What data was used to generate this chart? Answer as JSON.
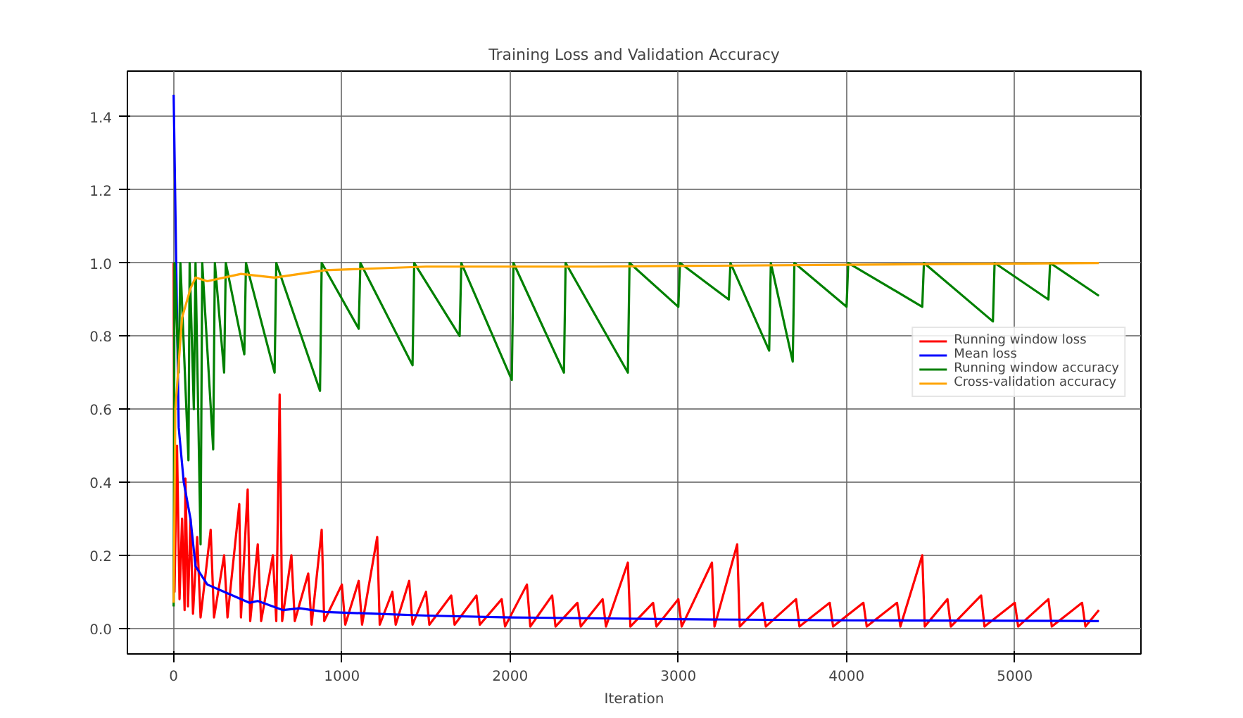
{
  "chart_data": {
    "type": "line",
    "title": "Training Loss and Validation Accuracy",
    "xlabel": "Iteration",
    "xlim": [
      -275,
      5750
    ],
    "ylim": [
      -0.07,
      1.525
    ],
    "xticks": [
      0,
      1000,
      2000,
      3000,
      4000,
      5000
    ],
    "yticks": [
      {
        "value": 0,
        "label": "0.0"
      },
      {
        "value": 0.2,
        "label": "0.2"
      },
      {
        "value": 0.4,
        "label": "0.4"
      },
      {
        "value": 0.6,
        "label": "0.6"
      },
      {
        "value": 0.8,
        "label": "0.8"
      },
      {
        "value": 1.0,
        "label": "1.0"
      },
      {
        "value": 1.2,
        "label": "1.2"
      },
      {
        "value": 1.4,
        "label": "1.4"
      }
    ],
    "grid": true,
    "legend": "right",
    "line_style": "solid",
    "marker": "none",
    "series": [
      {
        "name": "Running window loss",
        "color": "#ff0000",
        "x": [
          0,
          5,
          20,
          35,
          50,
          65,
          70,
          85,
          100,
          115,
          140,
          160,
          220,
          240,
          300,
          320,
          390,
          400,
          440,
          455,
          500,
          520,
          590,
          610,
          630,
          645,
          700,
          720,
          800,
          820,
          880,
          895,
          1000,
          1020,
          1100,
          1120,
          1210,
          1225,
          1300,
          1320,
          1400,
          1420,
          1500,
          1520,
          1650,
          1670,
          1800,
          1820,
          1950,
          1970,
          2100,
          2120,
          2250,
          2270,
          2400,
          2420,
          2550,
          2570,
          2700,
          2715,
          2850,
          2870,
          3000,
          3020,
          3200,
          3215,
          3350,
          3365,
          3500,
          3520,
          3700,
          3720,
          3900,
          3920,
          4100,
          4120,
          4300,
          4320,
          4450,
          4465,
          4600,
          4620,
          4800,
          4820,
          5000,
          5020,
          5200,
          5220,
          5400,
          5420,
          5500
        ],
        "values": [
          1.0,
          0.1,
          0.5,
          0.08,
          0.3,
          0.05,
          0.41,
          0.06,
          0.3,
          0.04,
          0.25,
          0.03,
          0.27,
          0.03,
          0.2,
          0.03,
          0.34,
          0.03,
          0.38,
          0.02,
          0.23,
          0.02,
          0.2,
          0.02,
          0.64,
          0.02,
          0.2,
          0.02,
          0.15,
          0.01,
          0.27,
          0.02,
          0.12,
          0.01,
          0.13,
          0.01,
          0.25,
          0.01,
          0.1,
          0.01,
          0.13,
          0.01,
          0.1,
          0.01,
          0.09,
          0.01,
          0.09,
          0.01,
          0.08,
          0.005,
          0.12,
          0.005,
          0.09,
          0.005,
          0.07,
          0.005,
          0.08,
          0.005,
          0.18,
          0.005,
          0.07,
          0.005,
          0.08,
          0.005,
          0.18,
          0.005,
          0.23,
          0.005,
          0.07,
          0.005,
          0.08,
          0.005,
          0.07,
          0.005,
          0.07,
          0.005,
          0.07,
          0.005,
          0.2,
          0.005,
          0.08,
          0.005,
          0.09,
          0.005,
          0.07,
          0.005,
          0.08,
          0.005,
          0.07,
          0.005,
          0.05
        ]
      },
      {
        "name": "Mean loss",
        "color": "#0000ff",
        "x": [
          0,
          30,
          60,
          100,
          130,
          200,
          300,
          450,
          500,
          650,
          750,
          900,
          1200,
          1500,
          2000,
          3000,
          4000,
          5500
        ],
        "values": [
          1.46,
          0.55,
          0.4,
          0.3,
          0.17,
          0.12,
          0.1,
          0.07,
          0.075,
          0.05,
          0.055,
          0.045,
          0.04,
          0.035,
          0.03,
          0.025,
          0.022,
          0.02
        ]
      },
      {
        "name": "Running window accuracy",
        "color": "#008000",
        "x": [
          0,
          5,
          30,
          40,
          88,
          95,
          120,
          130,
          160,
          170,
          235,
          245,
          300,
          310,
          420,
          430,
          600,
          610,
          870,
          880,
          1100,
          1110,
          1420,
          1430,
          1700,
          1710,
          2010,
          2020,
          2320,
          2330,
          2700,
          2710,
          3000,
          3010,
          3300,
          3310,
          3540,
          3550,
          3680,
          3690,
          4000,
          4010,
          4450,
          4460,
          4870,
          4880,
          5200,
          5210,
          5500
        ],
        "values": [
          0.06,
          1.0,
          0.7,
          1.0,
          0.46,
          1.0,
          0.6,
          1.0,
          0.23,
          1.0,
          0.49,
          1.0,
          0.7,
          1.0,
          0.75,
          1.0,
          0.7,
          1.0,
          0.65,
          1.0,
          0.82,
          1.0,
          0.72,
          1.0,
          0.8,
          1.0,
          0.68,
          1.0,
          0.7,
          1.0,
          0.7,
          1.0,
          0.88,
          1.0,
          0.9,
          1.0,
          0.76,
          1.0,
          0.73,
          1.0,
          0.88,
          1.0,
          0.88,
          1.0,
          0.84,
          1.0,
          0.9,
          1.0,
          0.91
        ]
      },
      {
        "name": "Cross-validation accuracy",
        "color": "#ffa500",
        "x": [
          0,
          10,
          50,
          100,
          130,
          200,
          400,
          600,
          900,
          1500,
          2500,
          5500
        ],
        "values": [
          0.07,
          0.6,
          0.85,
          0.93,
          0.96,
          0.95,
          0.97,
          0.96,
          0.98,
          0.99,
          0.99,
          1.0
        ]
      }
    ]
  }
}
